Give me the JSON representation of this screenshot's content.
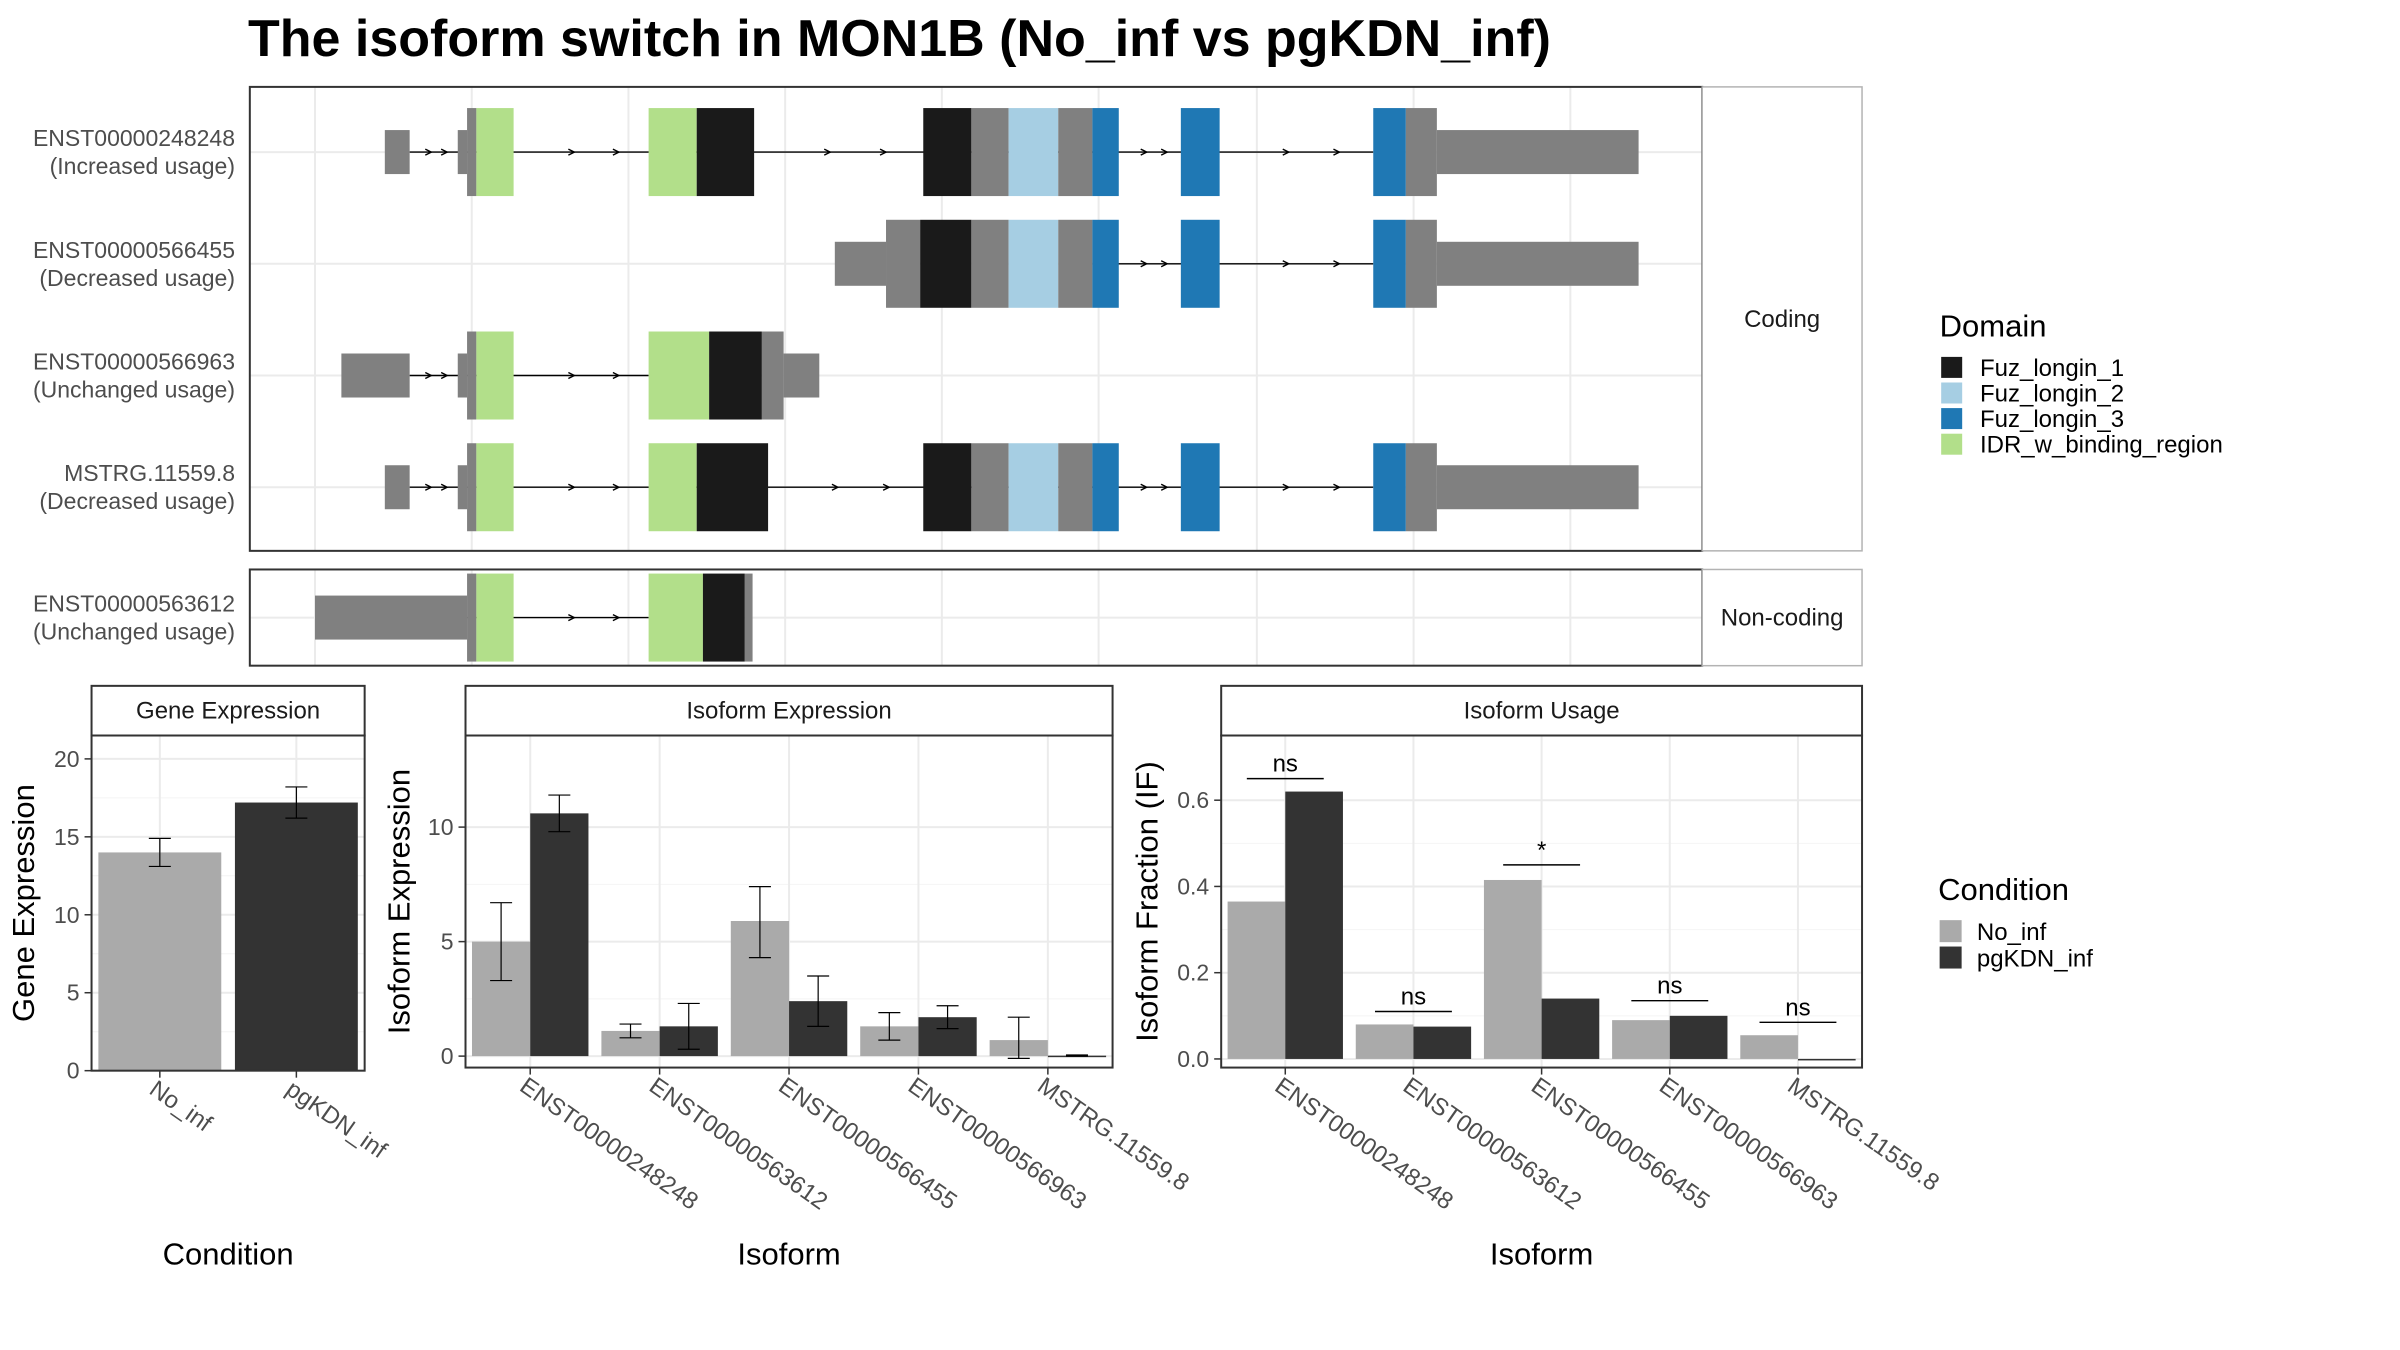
{
  "title": "The isoform switch in MON1B (No_inf vs pgKDN_inf)",
  "colors": {
    "Fuz_longin_1": "#1a1a1a",
    "Fuz_longin_2": "#a6cee3",
    "Fuz_longin_3": "#1f78b4",
    "IDR_w_binding_region": "#b2df8a",
    "exon": "#808080",
    "No_inf": "#aaaaaa",
    "pgKDN_inf": "#333333",
    "panel_border": "#333333",
    "strip_fill": "#ffffff",
    "grid": "#ebebeb"
  },
  "structure": {
    "facets": [
      "Coding",
      "Non-coding"
    ],
    "isoforms": [
      {
        "id": "ENST00000248248",
        "usage": "(Increased usage)",
        "facet": "Coding",
        "pieces": [
          {
            "s": 248,
            "e": 264,
            "k": "utr"
          },
          {
            "s": 295,
            "e": 301,
            "k": "utr"
          },
          {
            "s": 301,
            "e": 307,
            "k": "cds"
          },
          {
            "s": 307,
            "e": 331,
            "k": "IDR_w_binding_region"
          },
          {
            "s": 418,
            "e": 449,
            "k": "IDR_w_binding_region"
          },
          {
            "s": 449,
            "e": 486,
            "k": "Fuz_longin_1"
          },
          {
            "s": 595,
            "e": 626,
            "k": "Fuz_longin_1"
          },
          {
            "s": 626,
            "e": 650,
            "k": "cds"
          },
          {
            "s": 650,
            "e": 682,
            "k": "Fuz_longin_2"
          },
          {
            "s": 682,
            "e": 704,
            "k": "cds"
          },
          {
            "s": 704,
            "e": 721,
            "k": "Fuz_longin_3"
          },
          {
            "s": 761,
            "e": 786,
            "k": "Fuz_longin_3"
          },
          {
            "s": 885,
            "e": 906,
            "k": "Fuz_longin_3"
          },
          {
            "s": 906,
            "e": 926,
            "k": "cds"
          },
          {
            "s": 926,
            "e": 1056,
            "k": "utr"
          }
        ],
        "line": [
          264,
          885
        ]
      },
      {
        "id": "ENST00000566455",
        "usage": "(Decreased usage)",
        "facet": "Coding",
        "pieces": [
          {
            "s": 538,
            "e": 571,
            "k": "utr"
          },
          {
            "s": 571,
            "e": 593,
            "k": "cds"
          },
          {
            "s": 593,
            "e": 626,
            "k": "Fuz_longin_1"
          },
          {
            "s": 626,
            "e": 650,
            "k": "cds"
          },
          {
            "s": 650,
            "e": 682,
            "k": "Fuz_longin_2"
          },
          {
            "s": 682,
            "e": 704,
            "k": "cds"
          },
          {
            "s": 704,
            "e": 721,
            "k": "Fuz_longin_3"
          },
          {
            "s": 761,
            "e": 786,
            "k": "Fuz_longin_3"
          },
          {
            "s": 885,
            "e": 906,
            "k": "Fuz_longin_3"
          },
          {
            "s": 906,
            "e": 926,
            "k": "cds"
          },
          {
            "s": 926,
            "e": 1056,
            "k": "utr"
          }
        ],
        "line": [
          704,
          885
        ]
      },
      {
        "id": "ENST00000566963",
        "usage": "(Unchanged usage)",
        "facet": "Coding",
        "pieces": [
          {
            "s": 220,
            "e": 264,
            "k": "utr"
          },
          {
            "s": 295,
            "e": 301,
            "k": "utr"
          },
          {
            "s": 301,
            "e": 307,
            "k": "cds"
          },
          {
            "s": 307,
            "e": 331,
            "k": "IDR_w_binding_region"
          },
          {
            "s": 418,
            "e": 457,
            "k": "IDR_w_binding_region"
          },
          {
            "s": 457,
            "e": 491,
            "k": "Fuz_longin_1"
          },
          {
            "s": 491,
            "e": 505,
            "k": "cds"
          },
          {
            "s": 505,
            "e": 528,
            "k": "utr"
          }
        ],
        "line": [
          264,
          418
        ]
      },
      {
        "id": "MSTRG.11559.8",
        "usage": "(Decreased usage)",
        "facet": "Coding",
        "pieces": [
          {
            "s": 248,
            "e": 264,
            "k": "utr"
          },
          {
            "s": 295,
            "e": 301,
            "k": "utr"
          },
          {
            "s": 301,
            "e": 307,
            "k": "cds"
          },
          {
            "s": 307,
            "e": 331,
            "k": "IDR_w_binding_region"
          },
          {
            "s": 418,
            "e": 449,
            "k": "IDR_w_binding_region"
          },
          {
            "s": 449,
            "e": 495,
            "k": "Fuz_longin_1"
          },
          {
            "s": 595,
            "e": 626,
            "k": "Fuz_longin_1"
          },
          {
            "s": 626,
            "e": 650,
            "k": "cds"
          },
          {
            "s": 650,
            "e": 682,
            "k": "Fuz_longin_2"
          },
          {
            "s": 682,
            "e": 704,
            "k": "cds"
          },
          {
            "s": 704,
            "e": 721,
            "k": "Fuz_longin_3"
          },
          {
            "s": 761,
            "e": 786,
            "k": "Fuz_longin_3"
          },
          {
            "s": 885,
            "e": 906,
            "k": "Fuz_longin_3"
          },
          {
            "s": 906,
            "e": 926,
            "k": "cds"
          },
          {
            "s": 926,
            "e": 1056,
            "k": "utr"
          }
        ],
        "line": [
          264,
          885
        ]
      },
      {
        "id": "ENST00000563612",
        "usage": "(Unchanged usage)",
        "facet": "Non-coding",
        "pieces": [
          {
            "s": 203,
            "e": 301,
            "k": "utr"
          },
          {
            "s": 301,
            "e": 307,
            "k": "cds"
          },
          {
            "s": 307,
            "e": 331,
            "k": "IDR_w_binding_region"
          },
          {
            "s": 418,
            "e": 453,
            "k": "IDR_w_binding_region"
          },
          {
            "s": 453,
            "e": 480,
            "k": "Fuz_longin_1"
          },
          {
            "s": 480,
            "e": 485,
            "k": "cds"
          }
        ],
        "line": [
          301,
          418
        ]
      }
    ]
  },
  "legends": {
    "domain": {
      "title": "Domain",
      "items": [
        "Fuz_longin_1",
        "Fuz_longin_2",
        "Fuz_longin_3",
        "IDR_w_binding_region"
      ]
    },
    "condition": {
      "title": "Condition",
      "items": [
        "No_inf",
        "pgKDN_inf"
      ]
    }
  },
  "chart_data": [
    {
      "type": "bar",
      "title": "Gene Expression",
      "xlabel": "Condition",
      "ylabel": "Gene Expression",
      "categories": [
        "No_inf",
        "pgKDN_inf"
      ],
      "values": [
        14.0,
        17.2
      ],
      "error": [
        [
          13.1,
          14.9
        ],
        [
          16.2,
          18.2
        ]
      ],
      "ylim": [
        0,
        21.5
      ],
      "yticks": [
        0,
        5,
        10,
        15,
        20
      ]
    },
    {
      "type": "bar",
      "title": "Isoform Expression",
      "xlabel": "Isoform",
      "ylabel": "Isoform Expression",
      "categories": [
        "ENST00000248248",
        "ENST00000563612",
        "ENST00000566455",
        "ENST00000566963",
        "MSTRG.11559.8"
      ],
      "series": [
        {
          "name": "No_inf",
          "values": [
            5.0,
            1.1,
            5.9,
            1.3,
            0.7
          ],
          "error": [
            [
              3.3,
              6.7
            ],
            [
              0.8,
              1.4
            ],
            [
              4.3,
              7.4
            ],
            [
              0.7,
              1.9
            ],
            [
              -0.1,
              1.7
            ]
          ]
        },
        {
          "name": "pgKDN_inf",
          "values": [
            10.6,
            1.3,
            2.4,
            1.7,
            0.02
          ],
          "error": [
            [
              9.8,
              11.4
            ],
            [
              0.3,
              2.3
            ],
            [
              1.3,
              3.5
            ],
            [
              1.2,
              2.2
            ],
            [
              0.0,
              0.05
            ]
          ]
        }
      ],
      "ylim": [
        -0.5,
        14.0
      ],
      "yticks": [
        0,
        5,
        10
      ]
    },
    {
      "type": "bar",
      "title": "Isoform Usage",
      "xlabel": "Isoform",
      "ylabel": "Isoform Fraction (IF)",
      "categories": [
        "ENST00000248248",
        "ENST00000563612",
        "ENST00000566455",
        "ENST00000566963",
        "MSTRG.11559.8"
      ],
      "series": [
        {
          "name": "No_inf",
          "values": [
            0.365,
            0.08,
            0.415,
            0.09,
            0.055
          ]
        },
        {
          "name": "pgKDN_inf",
          "values": [
            0.62,
            0.075,
            0.14,
            0.1,
            0.0
          ]
        }
      ],
      "significance": [
        "ns",
        "ns",
        "*",
        "ns",
        "ns"
      ],
      "sig_y": [
        0.65,
        0.11,
        0.45,
        0.135,
        0.085
      ],
      "ylim": [
        -0.02,
        0.75
      ],
      "yticks": [
        0.0,
        0.2,
        0.4,
        0.6
      ]
    }
  ]
}
